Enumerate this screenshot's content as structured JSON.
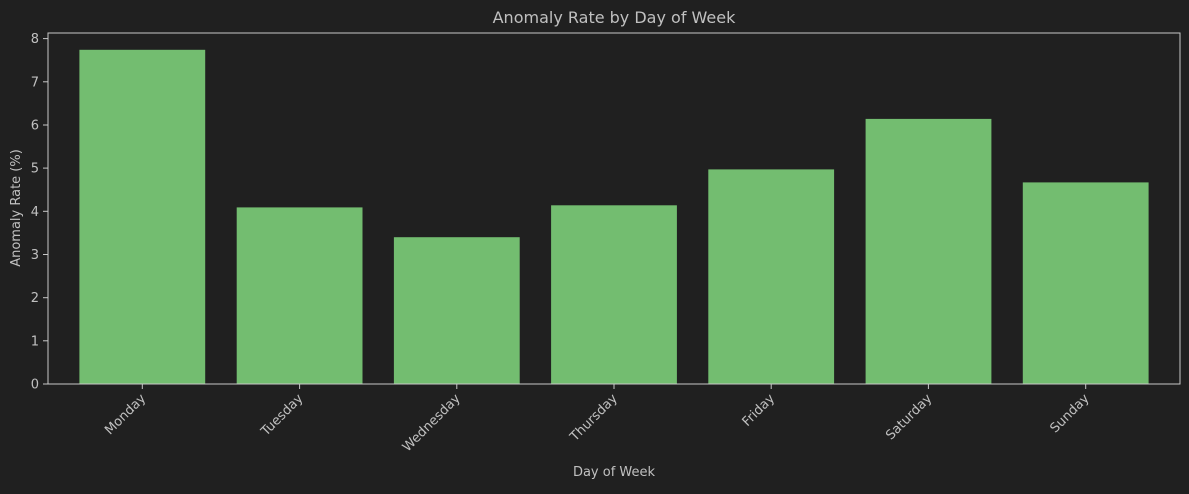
{
  "chart_data": {
    "type": "bar",
    "title": "Anomaly Rate by Day of Week",
    "xlabel": "Day of Week",
    "ylabel": "Anomaly Rate (%)",
    "categories": [
      "Monday",
      "Tuesday",
      "Wednesday",
      "Thursday",
      "Friday",
      "Saturday",
      "Sunday"
    ],
    "values": [
      7.74,
      4.09,
      3.4,
      4.14,
      4.97,
      6.14,
      4.67
    ],
    "ylim": [
      0,
      8.13
    ],
    "yticks": [
      "0",
      "1",
      "2",
      "3",
      "4",
      "5",
      "6",
      "7",
      "8"
    ],
    "grid": false,
    "legend": "none",
    "colors": {
      "background": "#202020",
      "bar": "#73bd70",
      "text": "#c0c0c0",
      "axis": "#c8c8c8"
    }
  }
}
